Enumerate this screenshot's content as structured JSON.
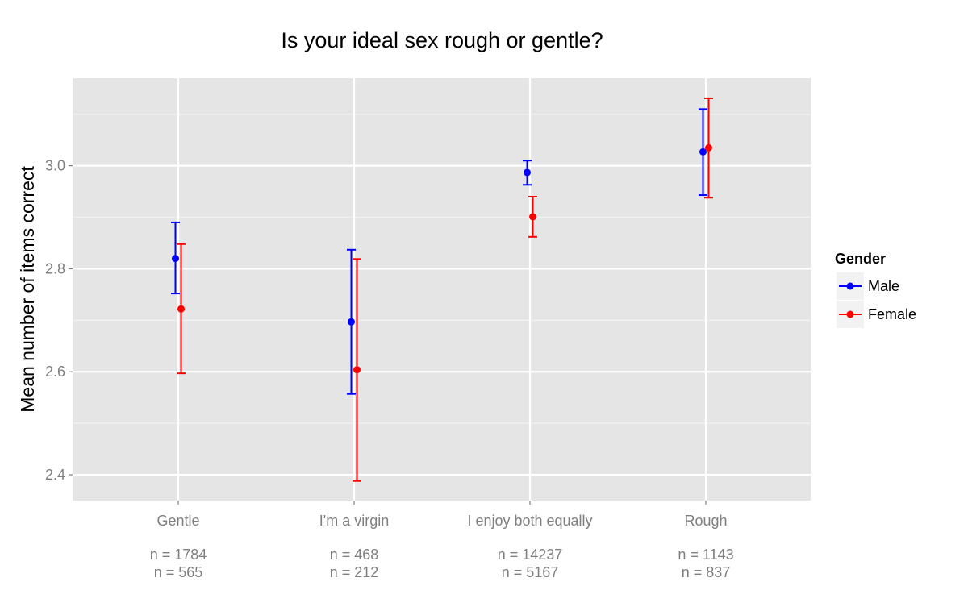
{
  "chart_data": {
    "type": "scatter",
    "subtype": "point-with-errorbars",
    "title": "Is your ideal sex rough or gentle?",
    "xlabel": "",
    "ylabel": "Mean number of items correct",
    "ylim": [
      2.35,
      3.17
    ],
    "yticks": [
      2.4,
      2.6,
      2.8,
      3.0
    ],
    "ytick_labels": [
      "2.4",
      "2.6",
      "2.8",
      "3.0"
    ],
    "grid": true,
    "legend": {
      "title": "Gender",
      "placement": "right"
    },
    "categories": [
      "Gentle",
      "I'm a virgin",
      "I enjoy both equally",
      "Rough"
    ],
    "series": [
      {
        "name": "Male",
        "color": "#0000ff",
        "values": [
          2.82,
          2.697,
          2.987,
          3.027
        ],
        "lower": [
          2.752,
          2.557,
          2.963,
          2.943
        ],
        "upper": [
          2.89,
          2.837,
          3.01,
          3.11
        ],
        "n": [
          "n = 1784",
          "n = 468",
          "n = 14237",
          "n = 1143"
        ]
      },
      {
        "name": "Female",
        "color": "#ff0000",
        "values": [
          2.722,
          2.604,
          2.901,
          3.035
        ],
        "lower": [
          2.597,
          2.388,
          2.862,
          2.938
        ],
        "upper": [
          2.848,
          2.819,
          2.94,
          3.131
        ],
        "n": [
          "n = 565",
          "n = 212",
          "n = 5167",
          "n = 837"
        ]
      }
    ]
  },
  "style": {
    "panel_bg": "#e5e5e5",
    "grid_major": "#ffffff",
    "grid_minor": "#f2f2f2"
  }
}
